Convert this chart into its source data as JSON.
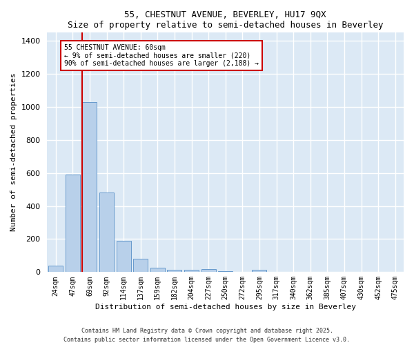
{
  "title1": "55, CHESTNUT AVENUE, BEVERLEY, HU17 9QX",
  "title2": "Size of property relative to semi-detached houses in Beverley",
  "xlabel": "Distribution of semi-detached houses by size in Beverley",
  "ylabel": "Number of semi-detached properties",
  "categories": [
    "24sqm",
    "47sqm",
    "69sqm",
    "92sqm",
    "114sqm",
    "137sqm",
    "159sqm",
    "182sqm",
    "204sqm",
    "227sqm",
    "250sqm",
    "272sqm",
    "295sqm",
    "317sqm",
    "340sqm",
    "362sqm",
    "385sqm",
    "407sqm",
    "430sqm",
    "452sqm",
    "475sqm"
  ],
  "values": [
    40,
    590,
    1030,
    480,
    190,
    80,
    25,
    15,
    15,
    20,
    5,
    0,
    15,
    0,
    0,
    0,
    0,
    0,
    0,
    0,
    0
  ],
  "bar_color": "#b8d0ea",
  "bar_edge_color": "#6699cc",
  "vline_color": "#cc0000",
  "vline_pos": 1.57,
  "annotation_text": "55 CHESTNUT AVENUE: 60sqm\n← 9% of semi-detached houses are smaller (220)\n90% of semi-detached houses are larger (2,188) →",
  "annotation_box_color": "#ffffff",
  "annotation_box_edge": "#cc0000",
  "ylim": [
    0,
    1450
  ],
  "plot_bg_color": "#dce9f5",
  "fig_bg_color": "#ffffff",
  "grid_color": "#ffffff",
  "yticks": [
    0,
    200,
    400,
    600,
    800,
    1000,
    1200,
    1400
  ],
  "footer1": "Contains HM Land Registry data © Crown copyright and database right 2025.",
  "footer2": "Contains public sector information licensed under the Open Government Licence v3.0."
}
